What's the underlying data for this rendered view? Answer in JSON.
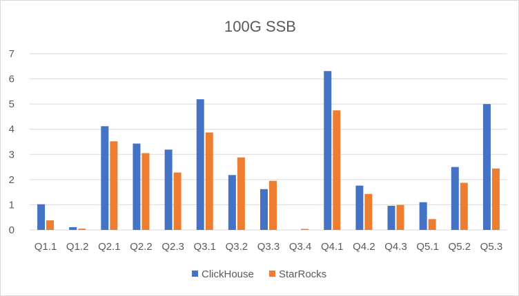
{
  "chart_data": {
    "type": "bar",
    "title": "100G SSB",
    "xlabel": "",
    "ylabel": "",
    "ylim": [
      0,
      7
    ],
    "yticks": [
      "0",
      "1",
      "2",
      "3",
      "4",
      "5",
      "6",
      "7"
    ],
    "grid": true,
    "legend_position": "bottom",
    "categories": [
      "Q1.1",
      "Q1.2",
      "Q2.1",
      "Q2.2",
      "Q2.3",
      "Q3.1",
      "Q3.2",
      "Q3.3",
      "Q3.4",
      "Q4.1",
      "Q4.2",
      "Q4.3",
      "Q5.1",
      "Q5.2",
      "Q5.3"
    ],
    "series": [
      {
        "name": "ClickHouse",
        "color": "#4472c4",
        "values": [
          1.02,
          0.11,
          4.12,
          3.43,
          3.19,
          5.19,
          2.18,
          1.62,
          0.0,
          6.31,
          1.76,
          0.96,
          1.1,
          2.5,
          5.0
        ]
      },
      {
        "name": "StarRocks",
        "color": "#ed7d31",
        "values": [
          0.38,
          0.05,
          3.52,
          3.05,
          2.28,
          3.87,
          2.88,
          1.95,
          0.04,
          4.75,
          1.43,
          0.99,
          0.43,
          1.87,
          2.44
        ]
      }
    ],
    "grid_color": "#d9d9d9"
  }
}
